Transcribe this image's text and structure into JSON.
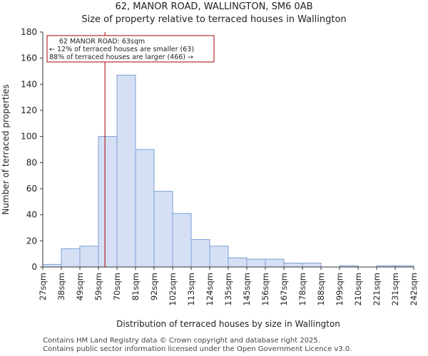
{
  "header": {
    "title": "62, MANOR ROAD, WALLINGTON, SM6 0AB",
    "subtitle": "Size of property relative to terraced houses in Wallington"
  },
  "chart_data": {
    "type": "bar",
    "title": "62, MANOR ROAD, WALLINGTON, SM6 0AB",
    "subtitle": "Size of property relative to terraced houses in Wallington",
    "xlabel": "Distribution of terraced houses by size in Wallington",
    "ylabel": "Number of terraced properties",
    "ylim": [
      0,
      180
    ],
    "yticks": [
      0,
      20,
      40,
      60,
      80,
      100,
      120,
      140,
      160,
      180
    ],
    "xticks": [
      "27sqm",
      "38sqm",
      "49sqm",
      "59sqm",
      "70sqm",
      "81sqm",
      "92sqm",
      "102sqm",
      "113sqm",
      "124sqm",
      "135sqm",
      "145sqm",
      "156sqm",
      "167sqm",
      "178sqm",
      "188sqm",
      "199sqm",
      "210sqm",
      "221sqm",
      "231sqm",
      "242sqm"
    ],
    "values": [
      2,
      14,
      16,
      100,
      147,
      90,
      58,
      41,
      21,
      16,
      7,
      6,
      6,
      3,
      3,
      0,
      1,
      0,
      1,
      1
    ],
    "bar_color": "#d6e0f5",
    "bar_edge_color": "#7a9fd4",
    "marker": {
      "bin_position": 3.35,
      "color": "#aa0000",
      "label_lines": [
        "62 MANOR ROAD: 63sqm",
        "← 12% of terraced houses are smaller (63)",
        "88% of terraced houses are larger (466) →"
      ]
    }
  },
  "footer": {
    "line1": "Contains HM Land Registry data © Crown copyright and database right 2025.",
    "line2": "Contains public sector information licensed under the Open Government Licence v3.0."
  }
}
